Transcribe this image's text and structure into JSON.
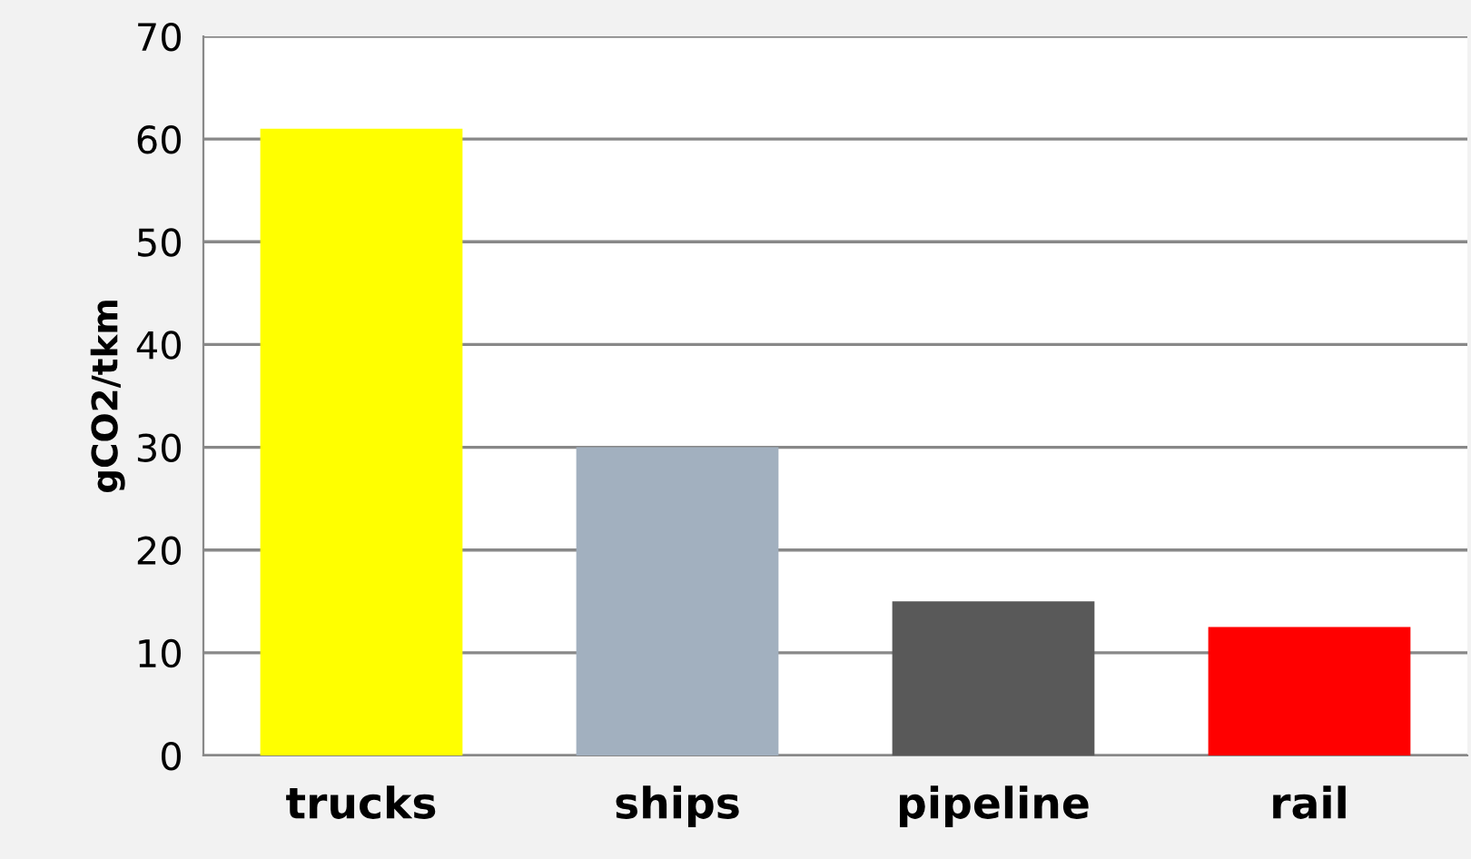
{
  "chart_data": {
    "type": "bar",
    "ylabel": "gCO2/tkm",
    "categories": [
      "trucks",
      "ships",
      "pipeline",
      "rail"
    ],
    "values": [
      61,
      30,
      15,
      12.5
    ],
    "colors": [
      "#ffff00",
      "#a2b0bf",
      "#595959",
      "#ff0000"
    ],
    "ylim": [
      0,
      70
    ],
    "yticks": [
      0,
      10,
      20,
      30,
      40,
      50,
      60,
      70
    ],
    "grid": "y",
    "legend": false
  }
}
